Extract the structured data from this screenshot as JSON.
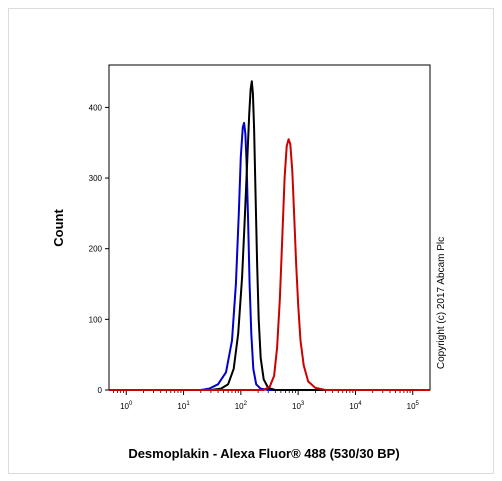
{
  "chart_data": {
    "type": "line",
    "xlabel": "Desmoplakin - Alexa Fluor® 488 (530/30 BP)",
    "ylabel": "Count",
    "x_scale": "log",
    "xlim": [
      0.5,
      200000
    ],
    "ylim": [
      0,
      460
    ],
    "x_ticks": [
      {
        "value": 1,
        "base": "10",
        "exp": "0"
      },
      {
        "value": 10,
        "base": "10",
        "exp": "1"
      },
      {
        "value": 100,
        "base": "10",
        "exp": "2"
      },
      {
        "value": 1000,
        "base": "10",
        "exp": "3"
      },
      {
        "value": 10000,
        "base": "10",
        "exp": "4"
      },
      {
        "value": 100000,
        "base": "10",
        "exp": "5"
      }
    ],
    "y_ticks": [
      0,
      100,
      200,
      300,
      400
    ],
    "annotation": "Copyright (c) 2017 Abcam Plc",
    "series": [
      {
        "color": "#0000cc",
        "points": [
          [
            20,
            0
          ],
          [
            28,
            2
          ],
          [
            40,
            8
          ],
          [
            55,
            25
          ],
          [
            70,
            70
          ],
          [
            82,
            150
          ],
          [
            92,
            250
          ],
          [
            100,
            330
          ],
          [
            108,
            372
          ],
          [
            114,
            378
          ],
          [
            120,
            362
          ],
          [
            126,
            320
          ],
          [
            134,
            240
          ],
          [
            142,
            150
          ],
          [
            152,
            80
          ],
          [
            165,
            30
          ],
          [
            185,
            8
          ],
          [
            220,
            2
          ],
          [
            300,
            0
          ]
        ]
      },
      {
        "color": "#000000",
        "points": [
          [
            30,
            0
          ],
          [
            45,
            2
          ],
          [
            60,
            8
          ],
          [
            75,
            30
          ],
          [
            90,
            80
          ],
          [
            105,
            160
          ],
          [
            118,
            250
          ],
          [
            130,
            330
          ],
          [
            140,
            390
          ],
          [
            148,
            425
          ],
          [
            155,
            437
          ],
          [
            162,
            420
          ],
          [
            170,
            370
          ],
          [
            180,
            280
          ],
          [
            192,
            180
          ],
          [
            205,
            100
          ],
          [
            222,
            45
          ],
          [
            250,
            15
          ],
          [
            300,
            3
          ],
          [
            400,
            0
          ]
        ]
      },
      {
        "color": "#cc0000",
        "points": [
          [
            250,
            0
          ],
          [
            320,
            5
          ],
          [
            380,
            20
          ],
          [
            430,
            60
          ],
          [
            480,
            130
          ],
          [
            530,
            220
          ],
          [
            580,
            300
          ],
          [
            630,
            345
          ],
          [
            680,
            355
          ],
          [
            730,
            348
          ],
          [
            790,
            310
          ],
          [
            850,
            250
          ],
          [
            920,
            180
          ],
          [
            1000,
            120
          ],
          [
            1100,
            70
          ],
          [
            1250,
            35
          ],
          [
            1500,
            12
          ],
          [
            2000,
            3
          ],
          [
            3000,
            0
          ]
        ]
      }
    ]
  }
}
